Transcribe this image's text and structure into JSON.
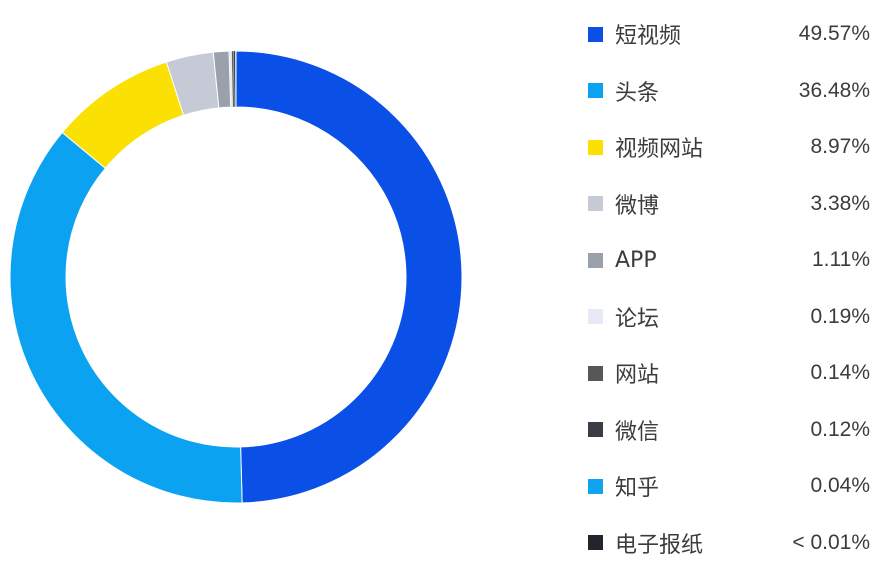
{
  "chart_data": {
    "type": "pie",
    "variant": "donut",
    "title": "",
    "legend_position": "right",
    "categories": [
      "短视频",
      "头条",
      "视频网站",
      "微博",
      "APP",
      "论坛",
      "网站",
      "微信",
      "知乎",
      "电子报纸"
    ],
    "values": [
      49.57,
      36.48,
      8.97,
      3.38,
      1.11,
      0.19,
      0.14,
      0.12,
      0.04,
      0.005
    ],
    "value_labels": [
      "49.57%",
      "36.48%",
      "8.97%",
      "3.38%",
      "1.11%",
      "0.19%",
      "0.14%",
      "0.12%",
      "0.04%",
      "< 0.01%"
    ],
    "colors": [
      "#0a4fe6",
      "#0ba2f2",
      "#fae003",
      "#c5cad6",
      "#9aa1ad",
      "#e6eaf6",
      "#555759",
      "#3a3d45",
      "#11a3f0",
      "#22252b"
    ]
  }
}
